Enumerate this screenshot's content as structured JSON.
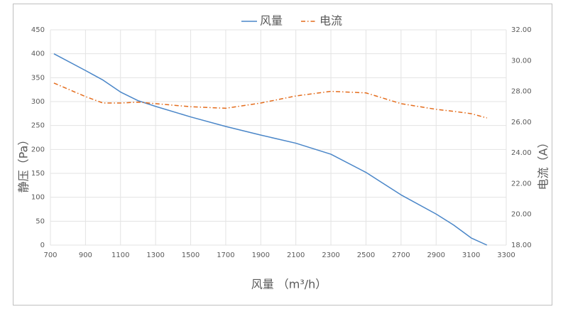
{
  "chart_data": {
    "type": "line",
    "x_label": "风量 （m³/h）",
    "y_label": "静压（Pa）",
    "y2_label": "电流（A）",
    "x": [
      720,
      900,
      1000,
      1100,
      1200,
      1300,
      1500,
      1700,
      1900,
      2100,
      2300,
      2500,
      2700,
      2900,
      3000,
      3100,
      3190
    ],
    "series": [
      {
        "name": "风量",
        "color": "#4a86c8",
        "values": [
          400,
          365,
          345,
          320,
          302,
          290,
          268,
          248,
          230,
          213,
          190,
          152,
          105,
          65,
          42,
          15,
          0
        ]
      },
      {
        "name": "电流",
        "color": "#e46c1c",
        "axis": "y2",
        "dash": "dashdot",
        "values": [
          28.54,
          27.66,
          27.24,
          27.24,
          27.3,
          27.2,
          27.0,
          26.9,
          27.24,
          27.7,
          28.0,
          27.9,
          27.2,
          26.83,
          26.7,
          26.55,
          26.27
        ]
      }
    ],
    "xlim": [
      700,
      3300
    ],
    "xticks": [
      700,
      900,
      1100,
      1300,
      1500,
      1700,
      1900,
      2100,
      2300,
      2500,
      2700,
      2900,
      3100,
      3300
    ],
    "ylim": [
      0,
      450
    ],
    "yticks": [
      0,
      50,
      100,
      150,
      200,
      250,
      300,
      350,
      400,
      450
    ],
    "y2lim": [
      18,
      32
    ],
    "y2ticks": [
      {
        "value": 18,
        "label": "18.00"
      },
      {
        "value": 20,
        "label": "20.00"
      },
      {
        "value": 22,
        "label": "22.00"
      },
      {
        "value": 24,
        "label": "24.00"
      },
      {
        "value": 26,
        "label": "26.00"
      },
      {
        "value": 28,
        "label": "28.00"
      },
      {
        "value": 30,
        "label": "30.00"
      },
      {
        "value": 32,
        "label": "32.00"
      }
    ],
    "grid": true,
    "legend": "top"
  }
}
